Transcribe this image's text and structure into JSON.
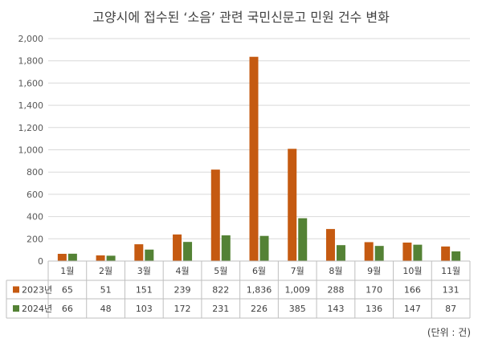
{
  "chart_data": {
    "type": "bar",
    "title": "고양시에 접수된 ‘소음’ 관련 국민신문고 민원 건수 변화",
    "unit_note": "(단위 : 건)",
    "categories": [
      "1월",
      "2월",
      "3월",
      "4월",
      "5월",
      "6월",
      "7월",
      "8월",
      "9월",
      "10월",
      "11월"
    ],
    "series": [
      {
        "name": "2023년",
        "color": "#C55A11",
        "values": [
          65,
          51,
          151,
          239,
          822,
          1836,
          1009,
          288,
          170,
          166,
          131
        ],
        "labels": [
          "65",
          "51",
          "151",
          "239",
          "822",
          "1,836",
          "1,009",
          "288",
          "170",
          "166",
          "131"
        ]
      },
      {
        "name": "2024년",
        "color": "#548235",
        "values": [
          66,
          48,
          103,
          172,
          231,
          226,
          385,
          143,
          136,
          147,
          87
        ],
        "labels": [
          "66",
          "48",
          "103",
          "172",
          "231",
          "226",
          "385",
          "143",
          "136",
          "147",
          "87"
        ]
      }
    ],
    "ylim": [
      0,
      2000
    ],
    "yticks": [
      "0",
      "200",
      "400",
      "600",
      "800",
      "1,000",
      "1,200",
      "1,400",
      "1,600",
      "1,800",
      "2,000"
    ],
    "grid": true,
    "legend": "data-table"
  }
}
